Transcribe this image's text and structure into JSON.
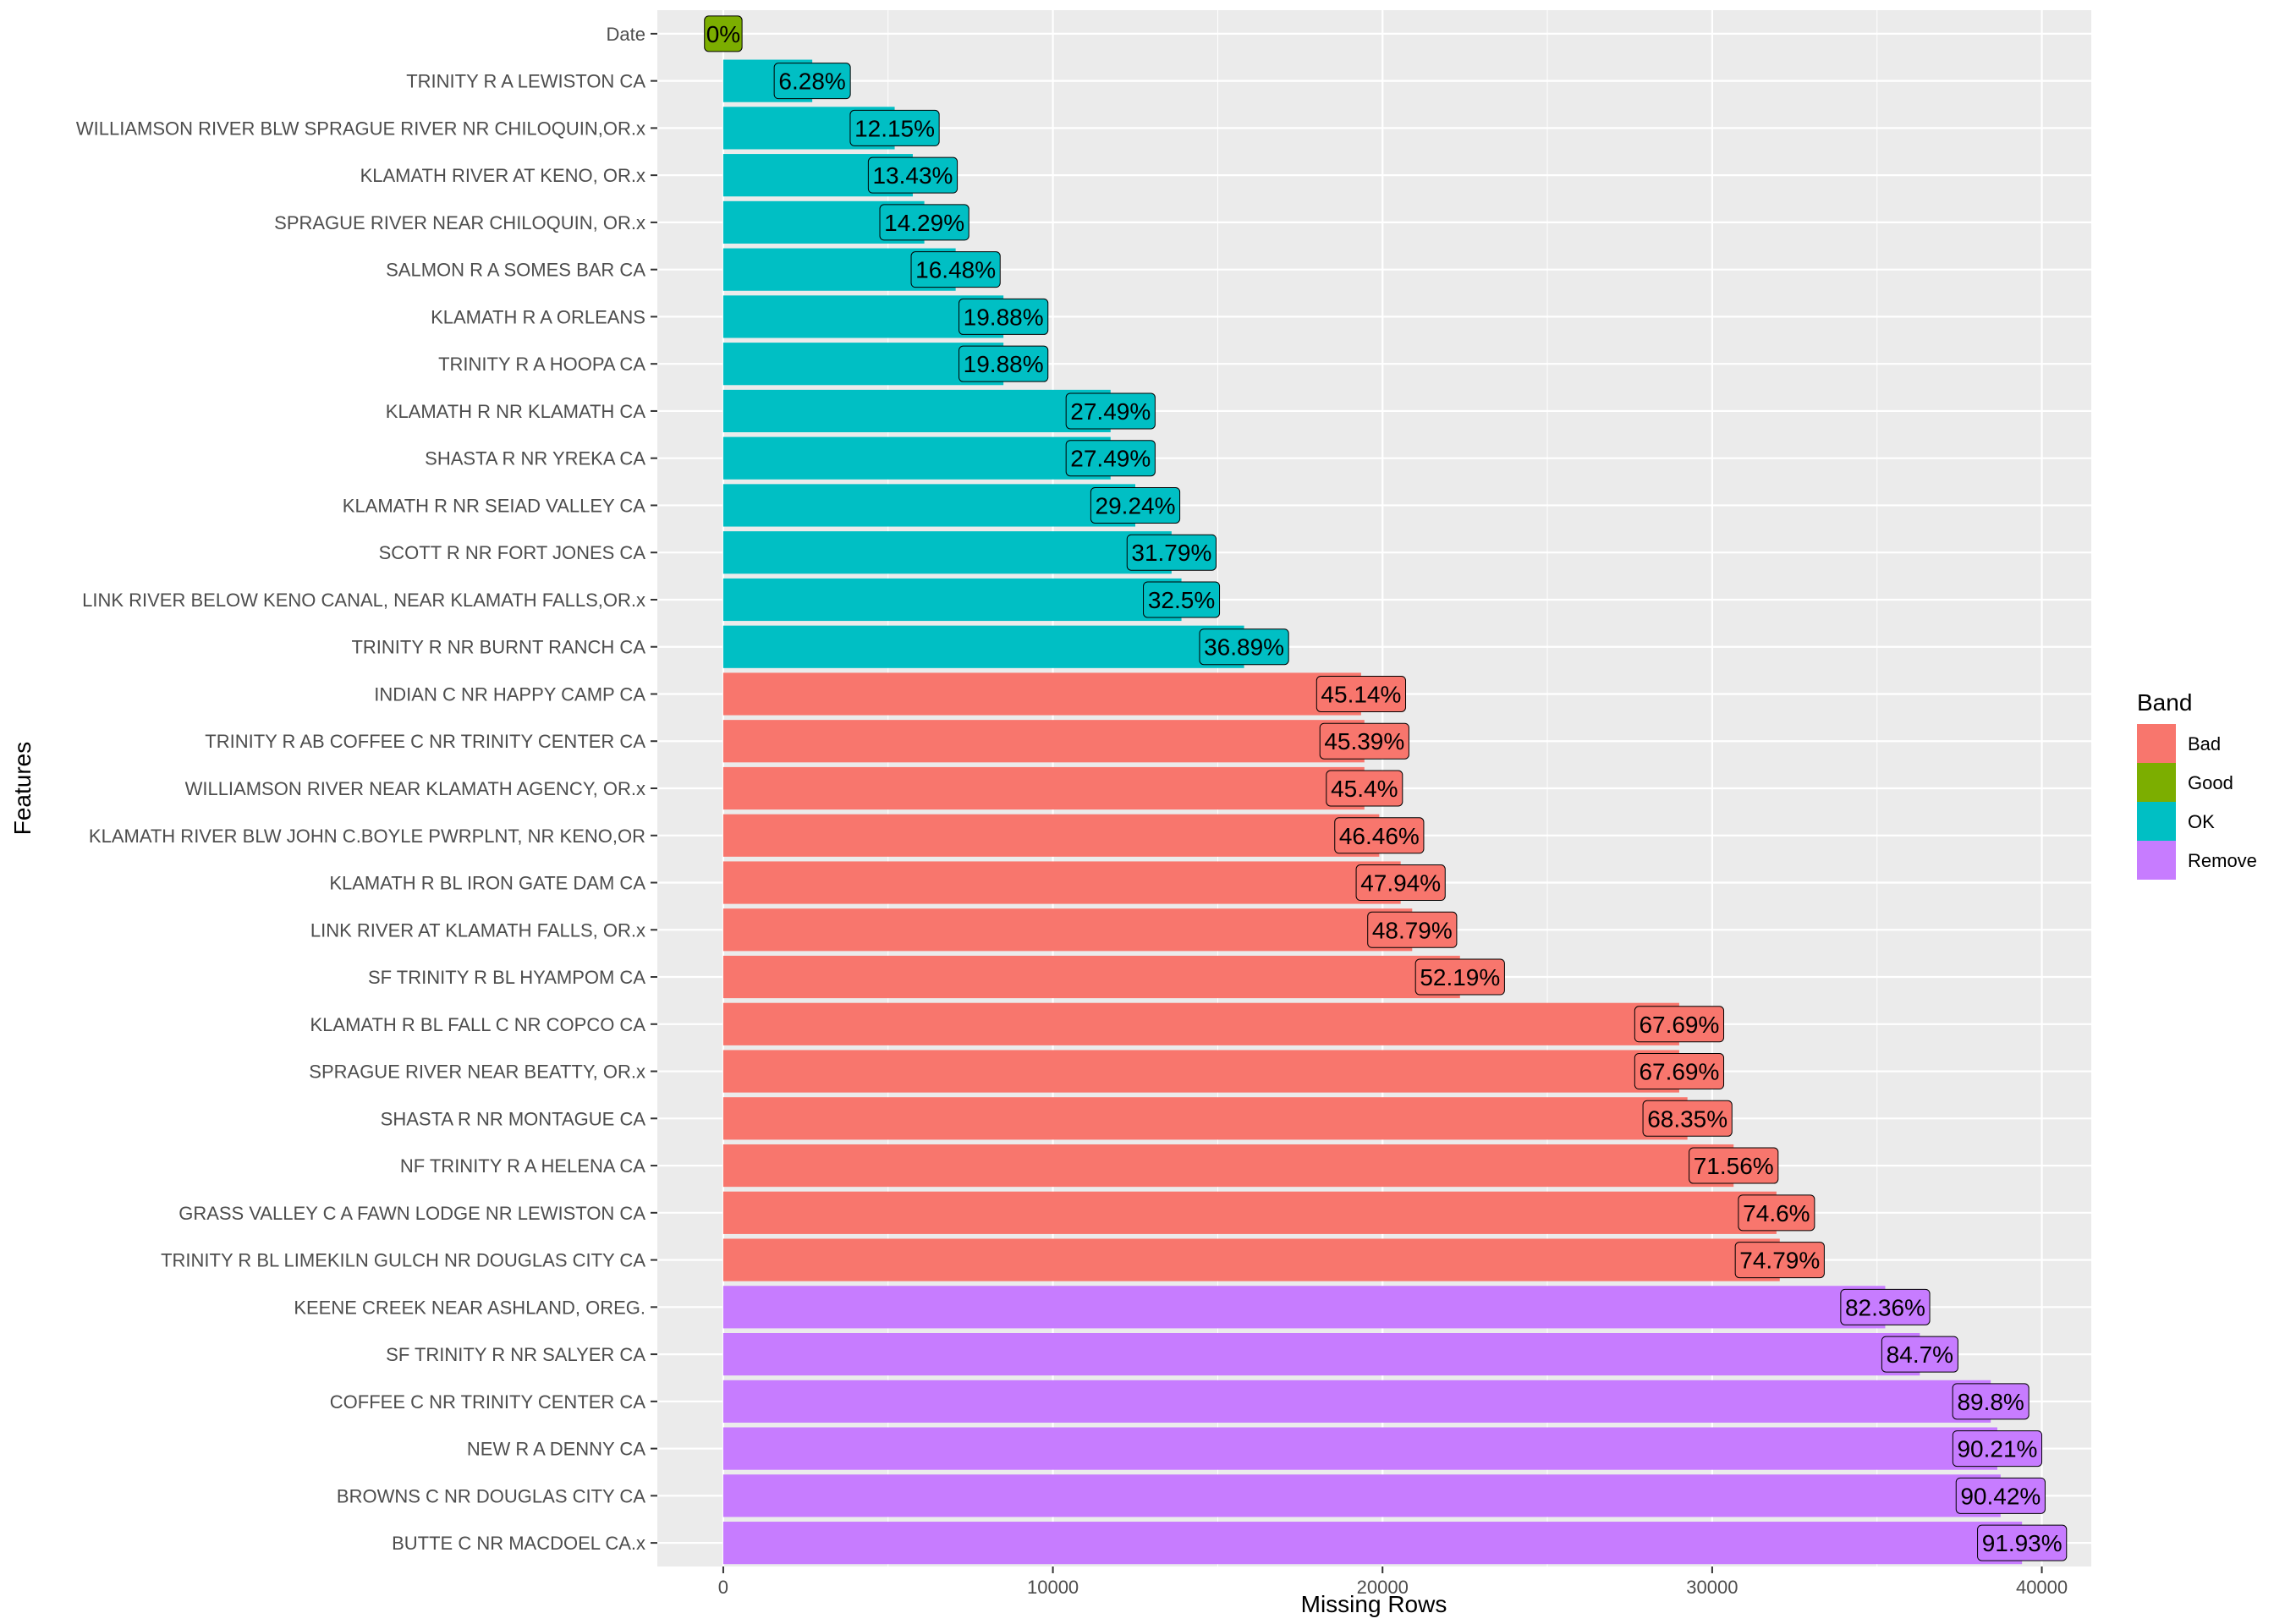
{
  "chart_data": {
    "type": "bar",
    "orientation": "horizontal",
    "xlabel": "Missing Rows",
    "ylabel": "Features",
    "xlim": [
      -2000,
      41500
    ],
    "x_ticks": [
      0,
      10000,
      20000,
      30000,
      40000
    ],
    "x_tick_labels": [
      "0",
      "10000",
      "20000",
      "30000",
      "40000"
    ],
    "grid": true,
    "legend": {
      "title": "Band",
      "position": "right",
      "items": [
        {
          "name": "Bad",
          "color": "#F8766D"
        },
        {
          "name": "Good",
          "color": "#7CAE00"
        },
        {
          "name": "OK",
          "color": "#00BFC4"
        },
        {
          "name": "Remove",
          "color": "#C77CFF"
        }
      ]
    },
    "categories": [
      "Date",
      "TRINITY R A LEWISTON CA",
      "WILLIAMSON RIVER BLW SPRAGUE RIVER NR CHILOQUIN,OR.x",
      "KLAMATH RIVER AT KENO, OR.x",
      "SPRAGUE RIVER NEAR CHILOQUIN, OR.x",
      "SALMON R A SOMES BAR CA",
      "KLAMATH R A ORLEANS",
      "TRINITY R A HOOPA CA",
      "KLAMATH R NR KLAMATH CA",
      "SHASTA R NR YREKA CA",
      "KLAMATH R NR SEIAD VALLEY CA",
      "SCOTT R NR FORT JONES CA",
      "LINK RIVER BELOW KENO CANAL, NEAR KLAMATH FALLS,OR.x",
      "TRINITY R NR BURNT RANCH CA",
      "INDIAN C NR HAPPY CAMP CA",
      "TRINITY R AB COFFEE C NR TRINITY CENTER CA",
      "WILLIAMSON RIVER NEAR KLAMATH AGENCY, OR.x",
      "KLAMATH RIVER BLW JOHN C.BOYLE PWRPLNT, NR KENO,OR",
      "KLAMATH R BL IRON GATE DAM CA",
      "LINK RIVER AT KLAMATH FALLS, OR.x",
      "SF TRINITY R BL HYAMPOM CA",
      "KLAMATH R BL FALL C NR COPCO CA",
      "SPRAGUE RIVER NEAR BEATTY, OR.x",
      "SHASTA R NR  MONTAGUE CA",
      "NF TRINITY R A HELENA CA",
      "GRASS VALLEY C A FAWN LODGE NR LEWISTON CA",
      "TRINITY R BL LIMEKILN GULCH NR DOUGLAS CITY CA",
      "KEENE CREEK NEAR ASHLAND, OREG.",
      "SF TRINITY R NR SALYER CA",
      "COFFEE C NR TRINITY CENTER CA",
      "NEW R A DENNY CA",
      "BROWNS C NR DOUGLAS CITY CA",
      "BUTTE C NR MACDOEL CA.x"
    ],
    "values": [
      0,
      2700,
      5200,
      5750,
      6100,
      7050,
      8500,
      8500,
      11750,
      11750,
      12500,
      13600,
      13900,
      15800,
      19350,
      19450,
      19450,
      19900,
      20550,
      20900,
      22350,
      29000,
      29000,
      29250,
      30650,
      31950,
      32050,
      35250,
      36300,
      38450,
      38650,
      38750,
      39400
    ],
    "bands": [
      "Good",
      "OK",
      "OK",
      "OK",
      "OK",
      "OK",
      "OK",
      "OK",
      "OK",
      "OK",
      "OK",
      "OK",
      "OK",
      "OK",
      "Bad",
      "Bad",
      "Bad",
      "Bad",
      "Bad",
      "Bad",
      "Bad",
      "Bad",
      "Bad",
      "Bad",
      "Bad",
      "Bad",
      "Bad",
      "Remove",
      "Remove",
      "Remove",
      "Remove",
      "Remove",
      "Remove"
    ],
    "labels": [
      "0%",
      "6.28%",
      "12.15%",
      "13.43%",
      "14.29%",
      "16.48%",
      "19.88%",
      "19.88%",
      "27.49%",
      "27.49%",
      "29.24%",
      "31.79%",
      "32.5%",
      "36.89%",
      "45.14%",
      "45.39%",
      "45.4%",
      "46.46%",
      "47.94%",
      "48.79%",
      "52.19%",
      "67.69%",
      "67.69%",
      "68.35%",
      "71.56%",
      "74.6%",
      "74.79%",
      "82.36%",
      "84.7%",
      "89.8%",
      "90.21%",
      "90.42%",
      "91.93%"
    ]
  }
}
